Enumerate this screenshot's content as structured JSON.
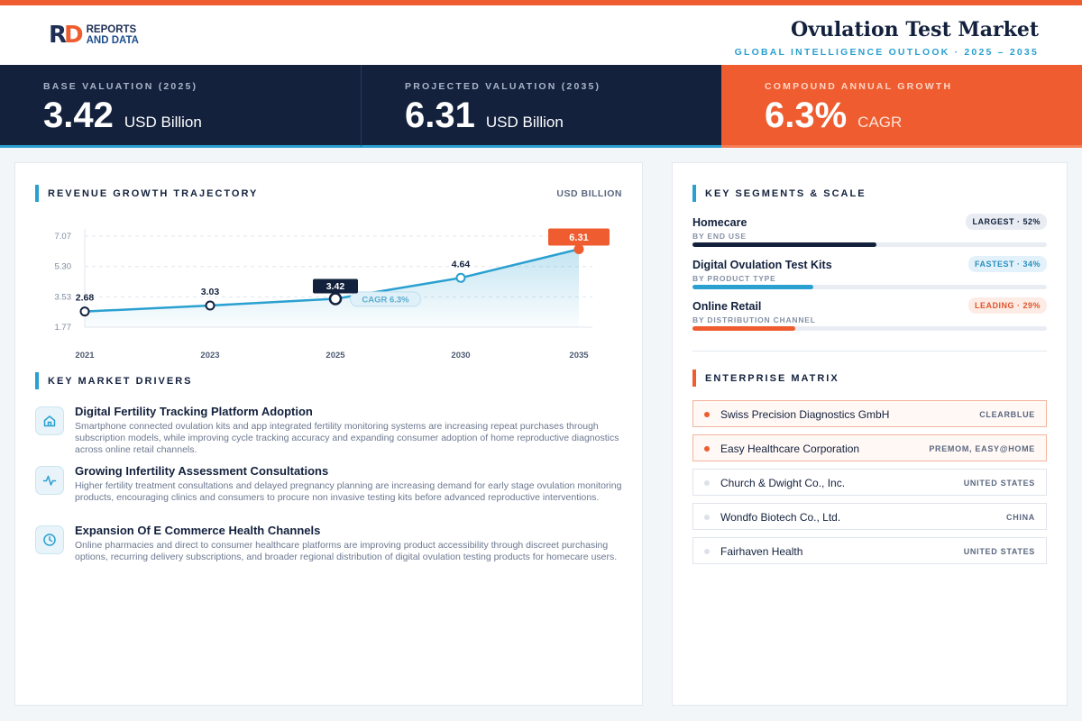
{
  "brand": {
    "logo_mark_r": "R",
    "logo_mark_d": "D",
    "logo_line1": "REPORTS",
    "logo_line2": "AND DATA"
  },
  "header": {
    "title": "Ovulation Test Market",
    "subtitle": "GLOBAL INTELLIGENCE OUTLOOK  ·  2025 – 2035"
  },
  "kpis": [
    {
      "label": "BASE VALUATION (2025)",
      "value": "3.42",
      "unit": "USD Billion"
    },
    {
      "label": "PROJECTED VALUATION (2035)",
      "value": "6.31",
      "unit": "USD Billion"
    },
    {
      "label": "COMPOUND ANNUAL GROWTH",
      "value": "6.3%",
      "unit": "CAGR"
    }
  ],
  "revenue_section": {
    "title": "REVENUE GROWTH TRAJECTORY",
    "unit": "USD BILLION",
    "cagr_pill": "CAGR 6.3%"
  },
  "chart_data": {
    "type": "line",
    "title": "REVENUE GROWTH TRAJECTORY",
    "xlabel": "",
    "ylabel": "USD BILLION",
    "categories": [
      "2021",
      "2023",
      "2025",
      "2030",
      "2035"
    ],
    "values": [
      2.68,
      3.03,
      3.42,
      4.64,
      6.31
    ],
    "data_labels": [
      "2.68",
      "3.03",
      "3.42",
      "4.64",
      "6.31"
    ],
    "highlight": {
      "2025": "navy",
      "2035": "orange"
    },
    "yticks": [
      1.77,
      3.53,
      5.3,
      7.07
    ],
    "ytick_labels": [
      "1.77",
      "3.53",
      "5.30",
      "7.07"
    ],
    "ylim": [
      1.77,
      7.07
    ],
    "grid": true,
    "line_color": "#2aa0d0",
    "accent_color": "#ee5c2f",
    "navy_color": "#13213d"
  },
  "drivers_section": {
    "title": "KEY MARKET DRIVERS",
    "items": [
      {
        "icon": "home-icon",
        "title": "Digital Fertility Tracking Platform Adoption",
        "desc": "Smartphone connected ovulation kits and app integrated fertility monitoring systems are increasing repeat purchases through subscription models, while improving cycle tracking accuracy and expanding consumer adoption of home reproductive diagnostics across online retail channels."
      },
      {
        "icon": "pulse-icon",
        "title": "Growing Infertility Assessment Consultations",
        "desc": "Higher fertility treatment consultations and delayed pregnancy planning are increasing demand for early stage ovulation monitoring products, encouraging clinics and consumers to procure non invasive testing kits before advanced reproductive interventions."
      },
      {
        "icon": "clock-icon",
        "title": "Expansion Of E Commerce Health Channels",
        "desc": "Online pharmacies and direct to consumer healthcare platforms are improving product accessibility through discreet purchasing options, recurring delivery subscriptions, and broader regional distribution of digital ovulation testing products for homecare users."
      }
    ]
  },
  "segments_section": {
    "title": "KEY SEGMENTS & SCALE",
    "items": [
      {
        "name": "Homecare",
        "sub": "BY END USE",
        "badge": "LARGEST · 52%",
        "share": 0.52,
        "color": "#13213d",
        "badge_style": "navy"
      },
      {
        "name": "Digital Ovulation Test Kits",
        "sub": "BY PRODUCT TYPE",
        "badge": "FASTEST · 34%",
        "share": 0.34,
        "color": "#2aa0d0",
        "badge_style": "blue"
      },
      {
        "name": "Online Retail",
        "sub": "BY DISTRIBUTION CHANNEL",
        "badge": "LEADING · 29%",
        "share": 0.29,
        "color": "#ee5c2f",
        "badge_style": "orange"
      }
    ]
  },
  "enterprise_section": {
    "title": "ENTERPRISE MATRIX",
    "items": [
      {
        "name": "Swiss Precision Diagnostics GmbH",
        "tag": "CLEARBLUE",
        "highlight": true
      },
      {
        "name": "Easy Healthcare Corporation",
        "tag": "PREMOM, EASY@HOME",
        "highlight": true
      },
      {
        "name": "Church & Dwight Co., Inc.",
        "tag": "UNITED STATES",
        "highlight": false
      },
      {
        "name": "Wondfo Biotech Co., Ltd.",
        "tag": "CHINA",
        "highlight": false
      },
      {
        "name": "Fairhaven Health",
        "tag": "UNITED STATES",
        "highlight": false
      }
    ]
  }
}
